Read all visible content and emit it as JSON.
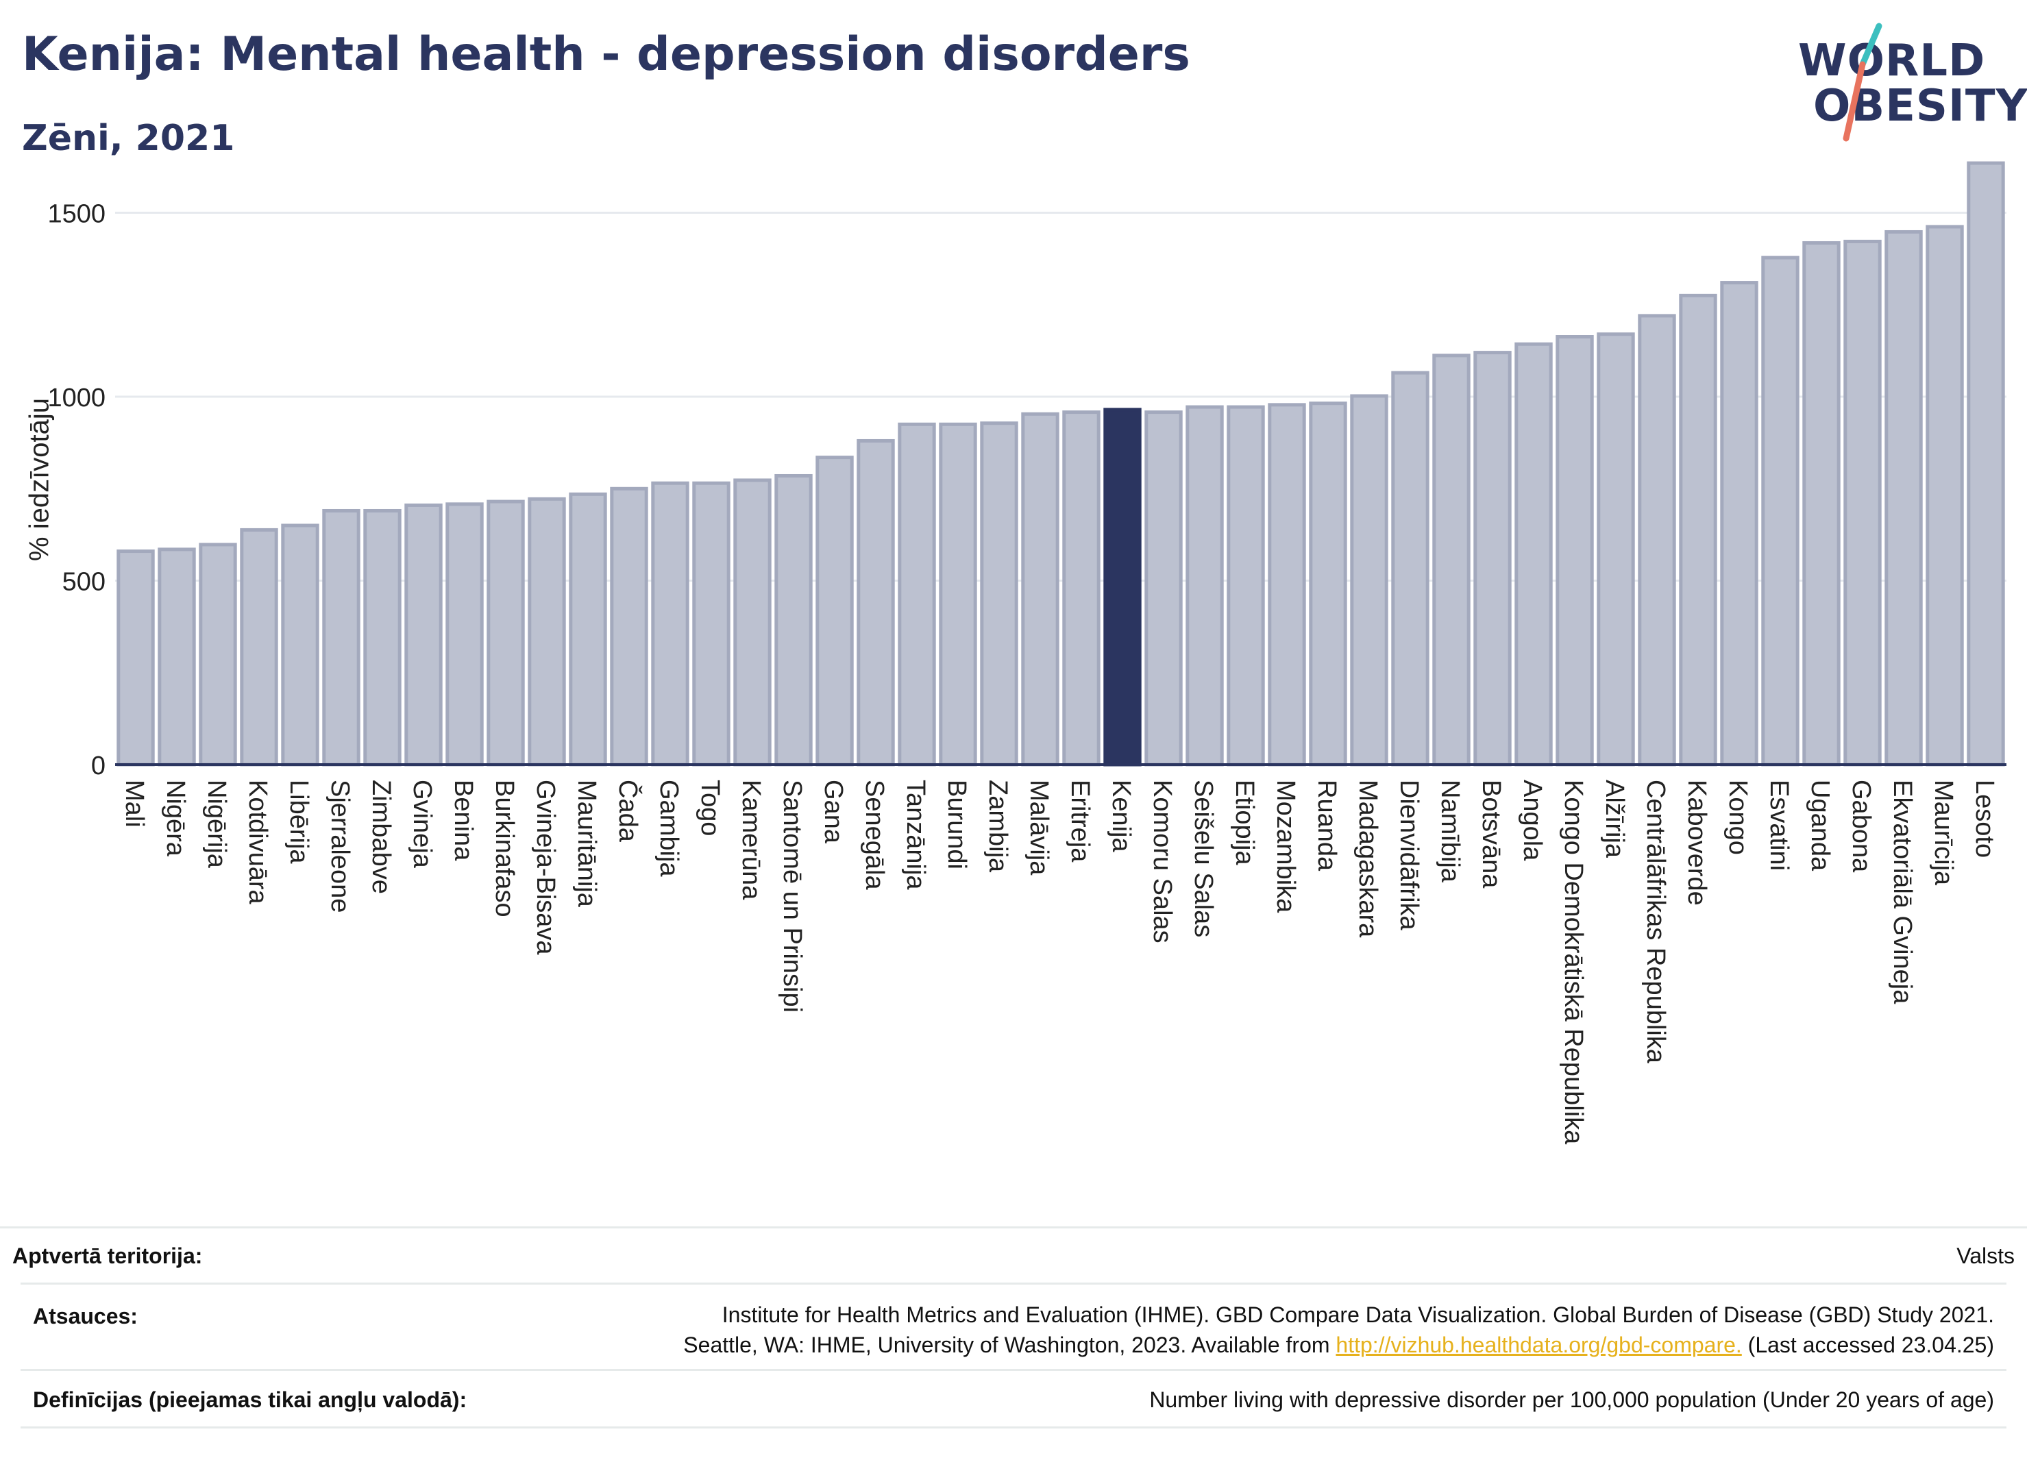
{
  "title": "Kenija: Mental health - depression disorders",
  "subtitle": "Zēni, 2021",
  "logo": {
    "line1": "WORLD",
    "line2": "OBESITY",
    "slash_colors": [
      "#3cbfbf",
      "#e8735e"
    ]
  },
  "colors": {
    "bar": "#bcc1d0",
    "bar_stroke": "#a3a9bd",
    "highlight": "#2b3560",
    "grid": "#e6e9ee",
    "axis": "#2b3560"
  },
  "chart_data": {
    "type": "bar",
    "ylabel": "% iedzīvotāju",
    "ylim": [
      0,
      1650
    ],
    "yticks": [
      0,
      500,
      1000,
      1500
    ],
    "grid": true,
    "highlight": "Kenija",
    "categories": [
      "Mali",
      "Nigēra",
      "Nigērija",
      "Kotdivuāra",
      "Libērija",
      "Sjerraleone",
      "Zimbabve",
      "Gvineja",
      "Benina",
      "Burkinafaso",
      "Gvineja-Bisava",
      "Mauritānija",
      "Čada",
      "Gambija",
      "Togo",
      "Kamerūna",
      "Santomē un Prinsipi",
      "Gana",
      "Senegāla",
      "Tanzānija",
      "Burundi",
      "Zambija",
      "Malāvija",
      "Eritreja",
      "Kenija",
      "Komoru Salas",
      "Seišelu Salas",
      "Etiopija",
      "Mozambika",
      "Ruanda",
      "Madagaskara",
      "Dienvidāfrika",
      "Namībija",
      "Botsvāna",
      "Angola",
      "Kongo Demokrātiskā Republika",
      "Alžīrija",
      "Centrālāfrikas Republika",
      "Kaboverde",
      "Kongo",
      "Esvatini",
      "Uganda",
      "Gabona",
      "Ekvatoriālā Gvineja",
      "Maurīcija",
      "Lesoto"
    ],
    "values": [
      580,
      585,
      598,
      638,
      650,
      690,
      690,
      705,
      708,
      715,
      722,
      735,
      750,
      765,
      765,
      773,
      785,
      835,
      880,
      925,
      925,
      928,
      953,
      958,
      965,
      958,
      972,
      972,
      978,
      982,
      1002,
      1065,
      1112,
      1120,
      1143,
      1163,
      1170,
      1220,
      1275,
      1310,
      1378,
      1418,
      1422,
      1448,
      1462,
      1635
    ]
  },
  "footer": {
    "territory_label": "Aptvertā teritorija:",
    "territory_value": "Valsts",
    "sources_label": "Atsauces:",
    "sources_line1": "Institute for Health Metrics and Evaluation (IHME). GBD Compare Data Visualization. Global Burden of Disease (GBD) Study 2021.",
    "sources_line2_pre": "Seattle, WA: IHME, University of Washington, 2023. Available from",
    "sources_link": "http://vizhub.healthdata.org/gbd-compare.",
    "sources_line2_post": "(Last accessed 23.04.25)",
    "definitions_label": "Definīcijas (pieejamas tikai angļu valodā):",
    "definitions_value": "Number living with depressive disorder per 100,000 population (Under 20 years of age)"
  }
}
